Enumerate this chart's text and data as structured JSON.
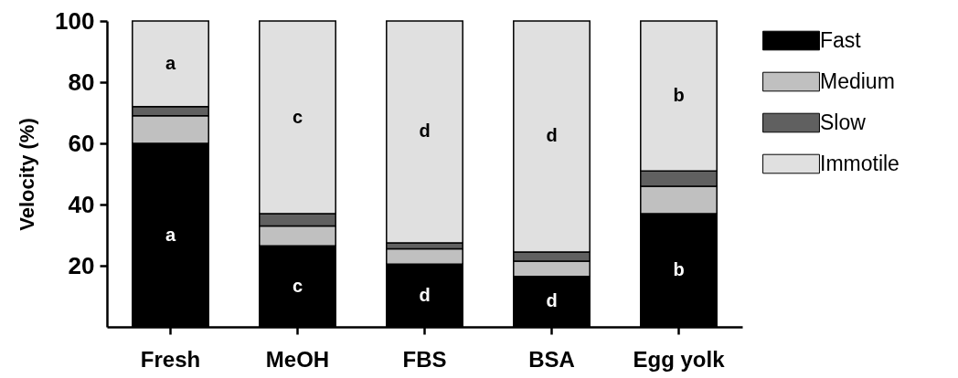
{
  "chart_data": {
    "type": "bar",
    "stacked": true,
    "ylabel": "Velocity (%)",
    "categories": [
      "Fresh",
      "MeOH",
      "FBS",
      "BSA",
      "Egg yolk"
    ],
    "series": [
      {
        "name": "Fast",
        "color": "#000000",
        "values": [
          60,
          26.5,
          20.5,
          16.5,
          37
        ]
      },
      {
        "name": "Medium",
        "color": "#c0c0c0",
        "values": [
          9,
          6.5,
          5,
          5,
          9
        ]
      },
      {
        "name": "Slow",
        "color": "#606060",
        "values": [
          3,
          4,
          2,
          3,
          5
        ]
      },
      {
        "name": "Immotile",
        "color": "#e0e0e0",
        "values": [
          28,
          63,
          72.5,
          75.5,
          49
        ]
      }
    ],
    "ylim": [
      0,
      100
    ],
    "yticks": [
      20,
      40,
      60,
      80,
      100
    ],
    "grid": false,
    "legend": "top right",
    "annotations": [
      "a",
      "a",
      "c",
      "c",
      "d",
      "d",
      "d",
      "d",
      "b",
      "b"
    ]
  }
}
